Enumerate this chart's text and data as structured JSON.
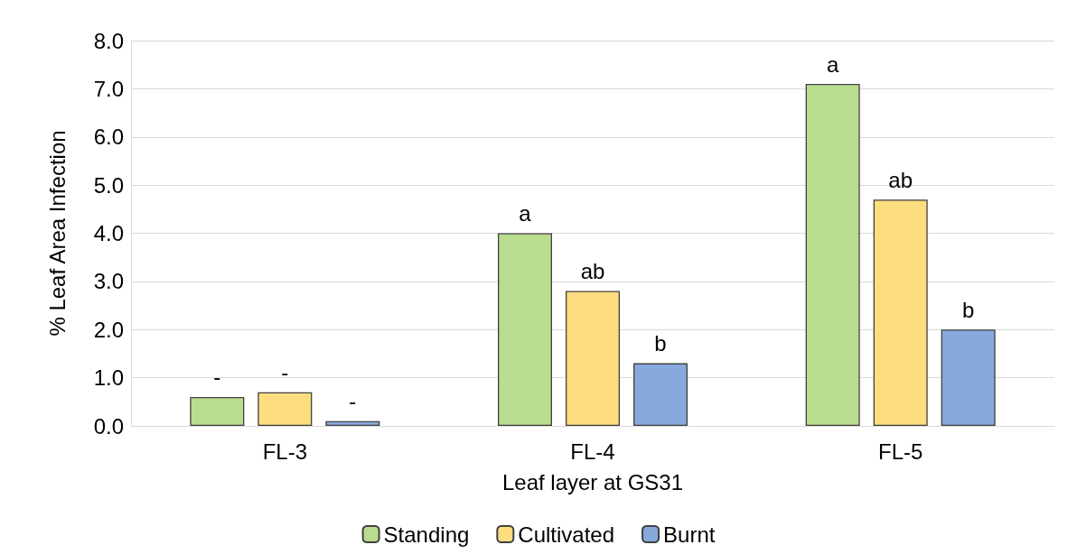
{
  "chart_data": {
    "type": "bar",
    "xlabel": "Leaf layer at GS31",
    "ylabel": "% Leaf Area Infection",
    "categories": [
      "FL-3",
      "FL-4",
      "FL-5"
    ],
    "series": [
      {
        "name": "Standing",
        "color": "#b9dc8f",
        "values": [
          0.6,
          4.0,
          7.1
        ],
        "value_labels": [
          "-",
          "a",
          "a"
        ]
      },
      {
        "name": "Cultivated",
        "color": "#fedd7e",
        "values": [
          0.7,
          2.8,
          4.7
        ],
        "value_labels": [
          "-",
          "ab",
          "ab"
        ]
      },
      {
        "name": "Burnt",
        "color": "#87a9dc",
        "values": [
          0.1,
          1.3,
          2.0
        ],
        "value_labels": [
          "-",
          "b",
          "b"
        ]
      }
    ],
    "ylim": [
      0,
      8
    ],
    "yticks": [
      {
        "value": 0,
        "label": "0.0"
      },
      {
        "value": 1,
        "label": "1.0"
      },
      {
        "value": 2,
        "label": "2.0"
      },
      {
        "value": 3,
        "label": "3.0"
      },
      {
        "value": 4,
        "label": "4.0"
      },
      {
        "value": 5,
        "label": "5.0"
      },
      {
        "value": 6,
        "label": "6.0"
      },
      {
        "value": 7,
        "label": "7.0"
      },
      {
        "value": 8,
        "label": "8.0"
      }
    ],
    "grid": "y",
    "legend": "bottom"
  }
}
